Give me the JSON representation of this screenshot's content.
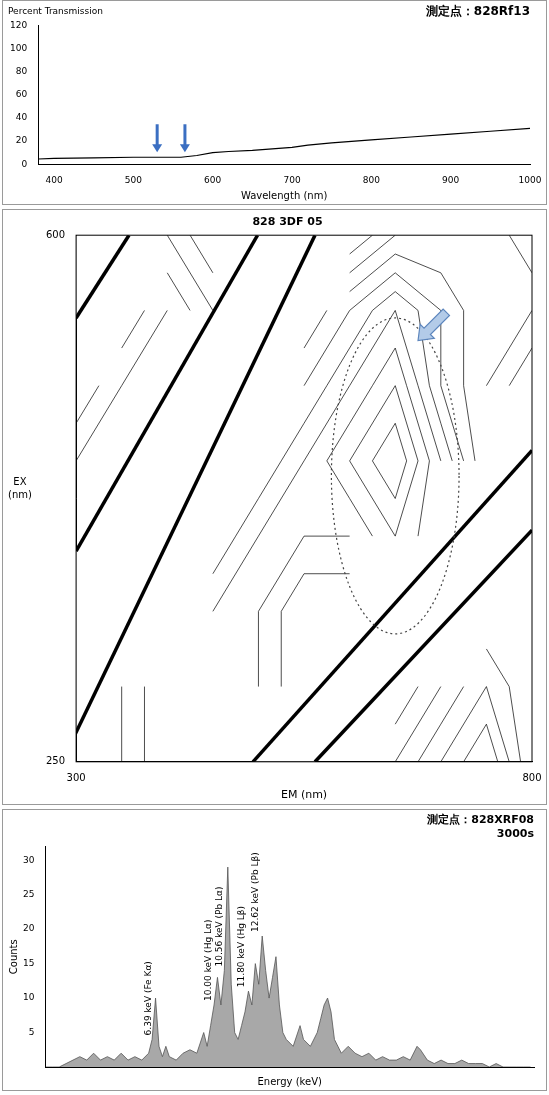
{
  "chart_data": [
    {
      "type": "line",
      "title": "測定点：828Rf13",
      "y_label": "Percent Transmission",
      "x_label": "Wavelength (nm)",
      "x": [
        380,
        400,
        450,
        500,
        530,
        560,
        580,
        600,
        620,
        650,
        700,
        720,
        750,
        800,
        850,
        900,
        950,
        1000
      ],
      "values": [
        4.5,
        5,
        5.5,
        6,
        6,
        6,
        7.5,
        10,
        11,
        12,
        14.5,
        16.5,
        18.5,
        21,
        23.5,
        26,
        28.5,
        31
      ],
      "color": "#000000",
      "xlim": [
        380,
        1000
      ],
      "xticks": [
        400,
        500,
        600,
        700,
        800,
        900,
        1000
      ],
      "ylim": [
        0,
        120
      ],
      "yticks": [
        0,
        20,
        40,
        60,
        80,
        100,
        120
      ],
      "grid": false,
      "arrows": [
        530,
        565
      ]
    },
    {
      "type": "contour",
      "title": "828 3DF 05",
      "x_label": "EM (nm)",
      "y_label": "EX (nm)",
      "xlim": [
        300,
        800
      ],
      "ylim": [
        250,
        600
      ],
      "xticks": [
        300,
        800
      ],
      "yticks": [
        250,
        600
      ],
      "grid": false,
      "color": "#000000",
      "cells": {
        "x": [
          300,
          350,
          400,
          450,
          500,
          550,
          600,
          650,
          700,
          750,
          800
        ],
        "y": [
          250,
          300,
          350,
          400,
          450,
          500,
          550,
          600
        ],
        "values": [
          [
            8,
            7,
            6,
            6,
            null,
            null,
            5,
            6,
            7,
            8,
            6
          ],
          [
            null,
            7,
            6,
            6,
            6,
            5,
            null,
            5,
            6,
            7,
            6
          ],
          [
            null,
            null,
            6,
            6,
            6,
            5,
            5,
            null,
            null,
            6,
            6
          ],
          [
            5,
            null,
            null,
            5,
            6,
            6,
            6,
            7,
            6,
            null,
            4
          ],
          [
            5,
            5,
            null,
            5,
            5,
            6,
            7,
            8,
            6,
            4,
            null
          ],
          [
            4,
            5,
            5,
            null,
            5,
            5,
            6,
            7,
            5,
            4,
            3
          ],
          [
            null,
            4,
            5,
            4,
            null,
            4,
            5,
            6,
            5,
            4,
            4
          ],
          [
            null,
            null,
            4,
            3,
            null,
            null,
            3,
            4,
            4,
            4,
            5
          ]
        ]
      },
      "levels": [
        3.5,
        4,
        4.5,
        5,
        5.5,
        6,
        6.5,
        7,
        7.5
      ],
      "scatter_bands": [
        {
          "lower": [
            [
              300,
              545
            ],
            [
              358,
              600
            ]
          ],
          "upper": [
            [
              300,
              600
            ],
            [
              300,
              600
            ]
          ]
        },
        {
          "lower": [
            [
              290,
              257
            ],
            [
              562,
              600
            ]
          ],
          "upper": [
            [
              300,
              390
            ],
            [
              499,
              600
            ]
          ]
        },
        {
          "lower": [
            [
              562,
              250
            ],
            [
              800,
              404
            ]
          ],
          "upper": [
            [
              494,
              250
            ],
            [
              800,
              457
            ]
          ]
        }
      ],
      "ellipse": {
        "center": [
          650,
          440
        ],
        "rx": 70,
        "ry": 105
      },
      "arrow": [
        675,
        530
      ]
    },
    {
      "type": "area",
      "title": "測定点：828XRF08",
      "subtitle": "3000s",
      "x_label": "Energy (keV)",
      "y_label": "Counts",
      "x": [
        0,
        0.4,
        0.8,
        1.2,
        1.6,
        2.0,
        2.4,
        2.8,
        3.2,
        3.6,
        4.0,
        4.4,
        4.8,
        5.2,
        5.6,
        6.0,
        6.2,
        6.4,
        6.6,
        6.8,
        7.0,
        7.2,
        7.6,
        8.0,
        8.4,
        8.8,
        9.2,
        9.4,
        9.6,
        9.8,
        10.0,
        10.2,
        10.4,
        10.6,
        10.8,
        11.0,
        11.2,
        11.4,
        11.6,
        11.8,
        12.0,
        12.2,
        12.4,
        12.6,
        12.8,
        13.0,
        13.2,
        13.4,
        13.6,
        13.8,
        14.0,
        14.4,
        14.8,
        15.0,
        15.4,
        15.8,
        16.0,
        16.2,
        16.4,
        16.6,
        16.8,
        17.2,
        17.6,
        18.0,
        18.4,
        18.8,
        19.2,
        19.6,
        20.0,
        20.4,
        20.8,
        21.2,
        21.6,
        21.8,
        22.2,
        22.6,
        23.0,
        23.4,
        23.8,
        24.2,
        24.6,
        25.0,
        25.4,
        25.8,
        26.2,
        26.6,
        27.0,
        27.4,
        27.8,
        28.2
      ],
      "values": [
        0,
        0,
        0,
        0.5,
        1,
        1.5,
        1,
        2,
        1,
        1.5,
        1,
        2,
        1,
        1.5,
        1,
        2,
        4,
        10,
        3,
        1.5,
        3,
        1.5,
        1,
        2,
        2.5,
        2,
        5,
        3,
        6,
        9,
        13,
        9,
        14,
        29,
        12,
        5,
        4,
        6,
        8,
        11,
        9,
        15,
        12,
        19,
        14,
        10,
        13,
        16,
        9,
        5,
        4,
        3,
        6,
        4,
        3,
        5,
        7,
        9,
        10,
        8,
        4,
        2,
        3,
        2,
        1.5,
        2,
        1,
        1.5,
        1,
        1,
        1.5,
        1,
        3,
        2.5,
        1,
        0.5,
        1,
        0.5,
        0.5,
        1,
        0.5,
        0.5,
        0.5,
        0,
        0.5,
        0,
        0,
        0,
        0,
        0
      ],
      "color": "#a8a8a8",
      "xlim": [
        0,
        28.4
      ],
      "ylim": [
        0,
        32
      ],
      "yticks": [
        5,
        10,
        15,
        20,
        25,
        30
      ],
      "tick_labels": "y",
      "grid": false,
      "annotations": [
        {
          "x": 6.39,
          "text": "6.39 keV (Fe Kα)"
        },
        {
          "x": 10.0,
          "text": "10.00 keV (Hg Lα)"
        },
        {
          "x": 10.56,
          "text": "10.56 keV (Pb Lα)"
        },
        {
          "x": 11.8,
          "text": "11.80 keV (Hg Lβ)"
        },
        {
          "x": 12.62,
          "text": "12.62 keV (Pb Lβ)"
        }
      ]
    }
  ]
}
